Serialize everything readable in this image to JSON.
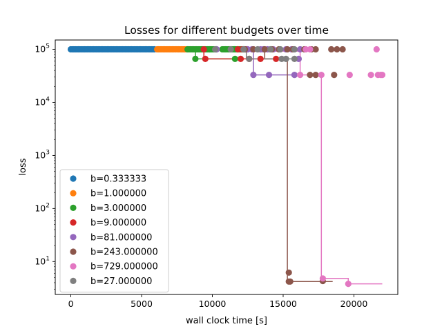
{
  "chart_data": {
    "type": "scatter",
    "title": "Losses for different budgets over time",
    "xlabel": "wall clock time [s]",
    "ylabel": "loss",
    "yscale": "log",
    "xlim": [
      -1100,
      23100
    ],
    "ylim": [
      2.4,
      150000
    ],
    "xticks": [
      0,
      5000,
      10000,
      15000,
      20000
    ],
    "yticks": [
      {
        "value": 10,
        "label": "10^1",
        "base": "10",
        "exp": "1"
      },
      {
        "value": 100,
        "label": "10^2",
        "base": "10",
        "exp": "2"
      },
      {
        "value": 1000,
        "label": "10^3",
        "base": "10",
        "exp": "3"
      },
      {
        "value": 10000,
        "label": "10^4",
        "base": "10",
        "exp": "4"
      },
      {
        "value": 100000,
        "label": "10^5",
        "base": "10",
        "exp": "5"
      }
    ],
    "legend_position": "lower-left",
    "grid": false,
    "series": [
      {
        "name": "b=0.333333",
        "color": "#1f77b4",
        "dense": [
          {
            "x_start": 0,
            "x_end": 6000,
            "y": 100000
          }
        ],
        "points": [],
        "line": []
      },
      {
        "name": "b=1.000000",
        "color": "#ff7f0e",
        "dense": [
          {
            "x_start": 6100,
            "x_end": 8200,
            "y": 100000
          }
        ],
        "points": [],
        "line": []
      },
      {
        "name": "b=3.000000",
        "color": "#2ca02c",
        "dense": [
          {
            "x_start": 8250,
            "x_end": 10300,
            "y": 100000
          },
          {
            "x_start": 10700,
            "x_end": 12400,
            "y": 100000
          }
        ],
        "points": [
          {
            "x": 8800,
            "y": 66000
          },
          {
            "x": 11600,
            "y": 66000
          },
          {
            "x": 9800,
            "y": 100000
          }
        ],
        "line": [
          {
            "x": 8800,
            "y": 100000
          },
          {
            "x": 8800,
            "y": 66000
          },
          {
            "x": 12000,
            "y": 66000
          }
        ]
      },
      {
        "name": "b=9.000000",
        "color": "#d62728",
        "dense": [],
        "points": [
          {
            "x": 9400,
            "y": 100000
          },
          {
            "x": 11800,
            "y": 100000
          },
          {
            "x": 12100,
            "y": 100000
          },
          {
            "x": 12400,
            "y": 100000
          },
          {
            "x": 9500,
            "y": 66000
          },
          {
            "x": 12000,
            "y": 66000
          },
          {
            "x": 12600,
            "y": 66000
          },
          {
            "x": 13400,
            "y": 66000
          },
          {
            "x": 14500,
            "y": 66000
          }
        ],
        "line": [
          {
            "x": 9400,
            "y": 100000
          },
          {
            "x": 9400,
            "y": 66000
          },
          {
            "x": 14500,
            "y": 66000
          }
        ]
      },
      {
        "name": "b=81.000000",
        "color": "#9467bd",
        "dense": [],
        "points": [
          {
            "x": 10300,
            "y": 100000
          },
          {
            "x": 12500,
            "y": 100000
          },
          {
            "x": 12800,
            "y": 100000
          },
          {
            "x": 13400,
            "y": 100000
          },
          {
            "x": 13600,
            "y": 100000
          },
          {
            "x": 13900,
            "y": 100000
          },
          {
            "x": 14300,
            "y": 100000
          },
          {
            "x": 15200,
            "y": 100000
          },
          {
            "x": 15600,
            "y": 100000
          },
          {
            "x": 16200,
            "y": 100000
          },
          {
            "x": 16100,
            "y": 66000
          },
          {
            "x": 12900,
            "y": 33000
          },
          {
            "x": 14000,
            "y": 33000
          },
          {
            "x": 15800,
            "y": 33000
          }
        ],
        "line": [
          {
            "x": 12900,
            "y": 100000
          },
          {
            "x": 12900,
            "y": 33000
          },
          {
            "x": 15800,
            "y": 33000
          }
        ]
      },
      {
        "name": "b=243.000000",
        "color": "#8c564b",
        "dense": [],
        "points": [
          {
            "x": 12300,
            "y": 100000
          },
          {
            "x": 12900,
            "y": 100000
          },
          {
            "x": 13700,
            "y": 100000
          },
          {
            "x": 14200,
            "y": 100000
          },
          {
            "x": 14700,
            "y": 100000
          },
          {
            "x": 15300,
            "y": 100000
          },
          {
            "x": 15700,
            "y": 100000
          },
          {
            "x": 16500,
            "y": 100000
          },
          {
            "x": 17000,
            "y": 100000
          },
          {
            "x": 17300,
            "y": 100000
          },
          {
            "x": 18400,
            "y": 100000
          },
          {
            "x": 18800,
            "y": 100000
          },
          {
            "x": 19200,
            "y": 100000
          },
          {
            "x": 16900,
            "y": 33000
          },
          {
            "x": 17300,
            "y": 33000
          },
          {
            "x": 18600,
            "y": 33000
          },
          {
            "x": 15400,
            "y": 6.2
          },
          {
            "x": 15400,
            "y": 4.2
          },
          {
            "x": 15500,
            "y": 4.2
          },
          {
            "x": 17800,
            "y": 4.3
          }
        ],
        "line": [
          {
            "x": 13700,
            "y": 100000
          },
          {
            "x": 13700,
            "y": 66000
          },
          {
            "x": 15300,
            "y": 66000
          },
          {
            "x": 15300,
            "y": 4.2
          },
          {
            "x": 18500,
            "y": 4.2
          }
        ]
      },
      {
        "name": "b=729.000000",
        "color": "#e377c2",
        "dense": [],
        "points": [
          {
            "x": 16600,
            "y": 100000
          },
          {
            "x": 16900,
            "y": 100000
          },
          {
            "x": 21600,
            "y": 100000
          },
          {
            "x": 16200,
            "y": 33000
          },
          {
            "x": 17700,
            "y": 33000
          },
          {
            "x": 19700,
            "y": 33000
          },
          {
            "x": 21200,
            "y": 33000
          },
          {
            "x": 21700,
            "y": 33000
          },
          {
            "x": 21900,
            "y": 33000
          },
          {
            "x": 22000,
            "y": 33000
          },
          {
            "x": 17800,
            "y": 4.8
          },
          {
            "x": 19600,
            "y": 3.8
          }
        ],
        "line": [
          {
            "x": 13600,
            "y": 100000
          },
          {
            "x": 13600,
            "y": 92000
          },
          {
            "x": 16200,
            "y": 92000
          },
          {
            "x": 16200,
            "y": 33000
          },
          {
            "x": 17700,
            "y": 33000
          },
          {
            "x": 17700,
            "y": 4.8
          },
          {
            "x": 19600,
            "y": 4.8
          },
          {
            "x": 19600,
            "y": 3.8
          },
          {
            "x": 22000,
            "y": 3.8
          }
        ]
      },
      {
        "name": "b=27.000000",
        "color": "#7f7f7f",
        "dense": [],
        "points": [
          {
            "x": 10200,
            "y": 100000
          },
          {
            "x": 11300,
            "y": 100000
          },
          {
            "x": 12200,
            "y": 100000
          },
          {
            "x": 13200,
            "y": 100000
          },
          {
            "x": 14100,
            "y": 100000
          },
          {
            "x": 14800,
            "y": 100000
          },
          {
            "x": 15800,
            "y": 100000
          },
          {
            "x": 14900,
            "y": 66000
          },
          {
            "x": 15200,
            "y": 66000
          },
          {
            "x": 15800,
            "y": 66000
          },
          {
            "x": 12600,
            "y": 66000
          }
        ],
        "line": [
          {
            "x": 12400,
            "y": 100000
          },
          {
            "x": 12400,
            "y": 66000
          },
          {
            "x": 15800,
            "y": 66000
          }
        ]
      }
    ]
  }
}
